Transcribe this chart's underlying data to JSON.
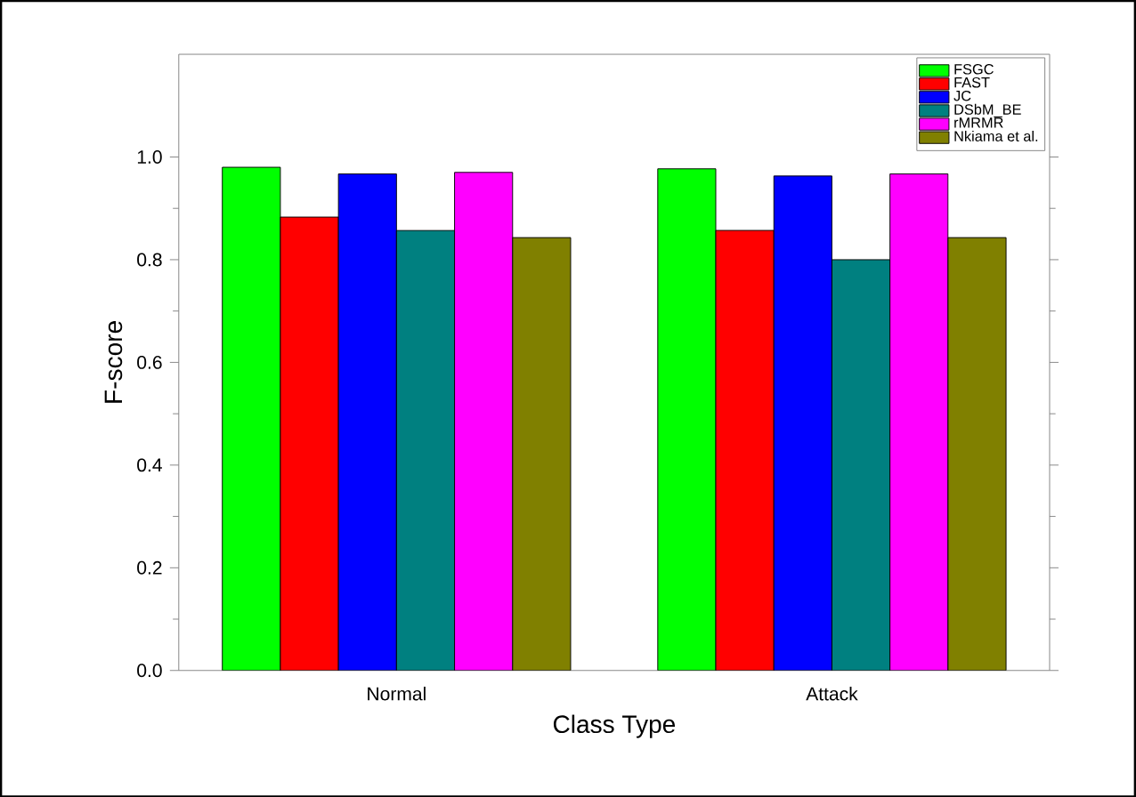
{
  "chart_data": {
    "type": "bar",
    "xlabel": "Class Type",
    "ylabel": "F-score",
    "categories": [
      "Normal",
      "Attack"
    ],
    "series": [
      {
        "name": "FSGC",
        "color": "#00ff00",
        "values": [
          0.98,
          0.977
        ]
      },
      {
        "name": "FAST",
        "color": "#ff0000",
        "values": [
          0.883,
          0.857
        ]
      },
      {
        "name": "JC",
        "color": "#0000ff",
        "values": [
          0.967,
          0.963
        ]
      },
      {
        "name": "DSbM_BE",
        "color": "#008080",
        "values": [
          0.857,
          0.8
        ]
      },
      {
        "name": "rMRMR",
        "color": "#ff00ff",
        "values": [
          0.97,
          0.967
        ]
      },
      {
        "name": "Nkiama et al.",
        "color": "#808000",
        "values": [
          0.843,
          0.843
        ]
      }
    ],
    "ylim": [
      0,
      1.2
    ],
    "yticks": [
      {
        "value": 0,
        "label": "0.0"
      },
      {
        "value": 0.2,
        "label": "0.2"
      },
      {
        "value": 0.4,
        "label": "0.4"
      },
      {
        "value": 0.6,
        "label": "0.6"
      },
      {
        "value": 0.8,
        "label": "0.8"
      },
      {
        "value": 1.0,
        "label": "1.0"
      }
    ],
    "legend": "top right",
    "grid": false
  }
}
